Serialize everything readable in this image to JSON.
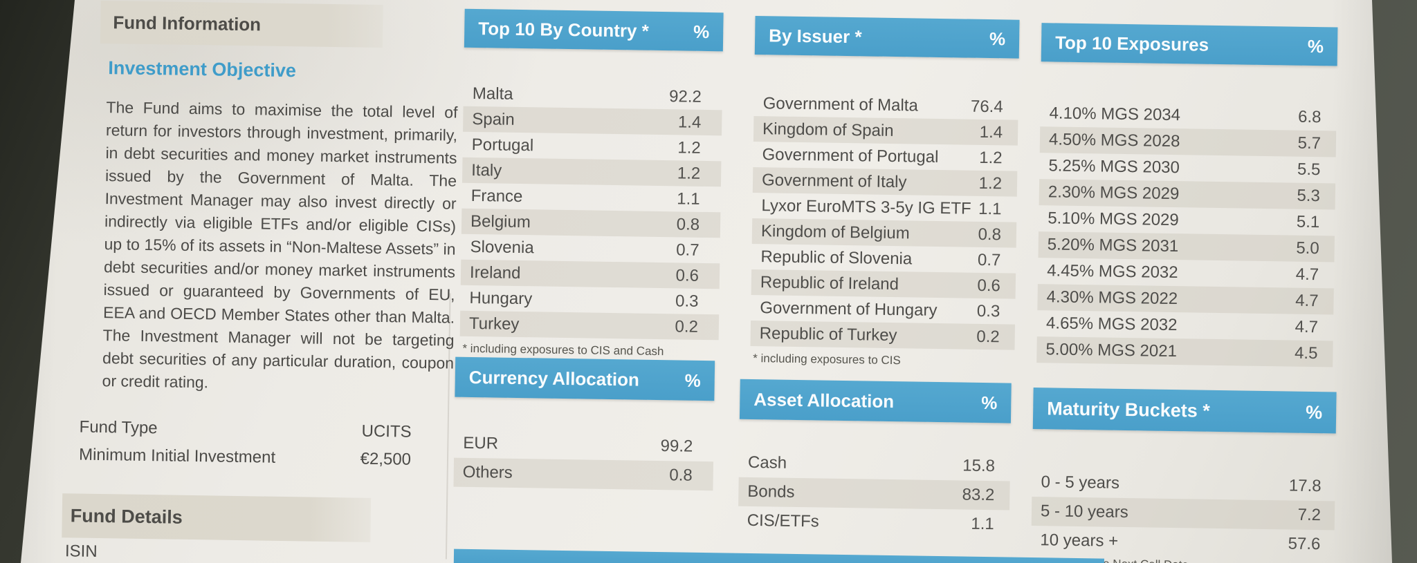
{
  "fund_information": {
    "title": "Fund Information"
  },
  "investment_objective": {
    "title": "Investment Objective",
    "text": "The Fund aims to maximise the total level of return for investors through investment, primarily, in debt securities and money market instruments issued by the Government of Malta. The Investment Manager may also invest directly or indirectly via eligible ETFs and/or eligible CISs) up to 15% of its assets in “Non-Maltese Assets” in debt securities and/or money market instruments issued or guaranteed by Governments of EU, EEA and OECD Member States other than Malta. The Investment Manager will not be targeting debt securities of any particular duration, coupon or credit rating."
  },
  "fund_facts": {
    "rows": [
      {
        "label": "Fund Type",
        "value": "UCITS"
      },
      {
        "label": "Minimum Initial Investment",
        "value": "€2,500"
      }
    ]
  },
  "fund_details": {
    "title": "Fund Details",
    "first_row_label": "ISIN"
  },
  "tables": {
    "country": {
      "title": "Top 10 By Country *",
      "unit": "%",
      "rows": [
        {
          "label": "Malta",
          "value": "92.2"
        },
        {
          "label": "Spain",
          "value": "1.4"
        },
        {
          "label": "Portugal",
          "value": "1.2"
        },
        {
          "label": "Italy",
          "value": "1.2"
        },
        {
          "label": "France",
          "value": "1.1"
        },
        {
          "label": "Belgium",
          "value": "0.8"
        },
        {
          "label": "Slovenia",
          "value": "0.7"
        },
        {
          "label": "Ireland",
          "value": "0.6"
        },
        {
          "label": "Hungary",
          "value": "0.3"
        },
        {
          "label": "Turkey",
          "value": "0.2"
        }
      ],
      "footnote": "* including exposures to CIS and Cash"
    },
    "issuer": {
      "title": "By Issuer *",
      "unit": "%",
      "rows": [
        {
          "label": "Government of Malta",
          "value": "76.4"
        },
        {
          "label": "Kingdom of Spain",
          "value": "1.4"
        },
        {
          "label": "Government of Portugal",
          "value": "1.2"
        },
        {
          "label": "Government of Italy",
          "value": "1.2"
        },
        {
          "label": "Lyxor EuroMTS 3-5y IG ETF",
          "value": "1.1"
        },
        {
          "label": "Kingdom of Belgium",
          "value": "0.8"
        },
        {
          "label": "Republic of Slovenia",
          "value": "0.7"
        },
        {
          "label": "Republic of Ireland",
          "value": "0.6"
        },
        {
          "label": "Government of Hungary",
          "value": "0.3"
        },
        {
          "label": "Republic of Turkey",
          "value": "0.2"
        }
      ],
      "footnote": "* including exposures to CIS"
    },
    "exposures": {
      "title": "Top 10 Exposures",
      "unit": "%",
      "rows": [
        {
          "label": "4.10% MGS 2034",
          "value": "6.8"
        },
        {
          "label": "4.50% MGS 2028",
          "value": "5.7"
        },
        {
          "label": "5.25% MGS 2030",
          "value": "5.5"
        },
        {
          "label": "2.30% MGS 2029",
          "value": "5.3"
        },
        {
          "label": "5.10% MGS 2029",
          "value": "5.1"
        },
        {
          "label": "5.20% MGS 2031",
          "value": "5.0"
        },
        {
          "label": "4.45% MGS 2032",
          "value": "4.7"
        },
        {
          "label": "4.30% MGS 2022",
          "value": "4.7"
        },
        {
          "label": "4.65% MGS 2032",
          "value": "4.7"
        },
        {
          "label": "5.00% MGS 2021",
          "value": "4.5"
        }
      ]
    },
    "currency": {
      "title": "Currency Allocation",
      "unit": "%",
      "rows": [
        {
          "label": "EUR",
          "value": "99.2"
        },
        {
          "label": "Others",
          "value": "0.8"
        }
      ]
    },
    "asset": {
      "title": "Asset Allocation",
      "unit": "%",
      "rows": [
        {
          "label": "Cash",
          "value": "15.8"
        },
        {
          "label": "Bonds",
          "value": "83.2"
        },
        {
          "label": "CIS/ETFs",
          "value": "1.1"
        }
      ]
    },
    "maturity": {
      "title": "Maturity Buckets *",
      "unit": "%",
      "rows": [
        {
          "label": "0 - 5 years",
          "value": "17.8"
        },
        {
          "label": "5 - 10 years",
          "value": "7.2"
        },
        {
          "label": "10 years +",
          "value": "57.6"
        }
      ],
      "footnote": "* based on the Next Call Date"
    }
  },
  "colors": {
    "header_blue": "#4fa4ce",
    "section_title_blue": "#3f9cc9",
    "paper": "#eceae5",
    "band_tan": "#dcd8cd",
    "text_gray": "#4b4a47",
    "background_dark": "#454840"
  }
}
